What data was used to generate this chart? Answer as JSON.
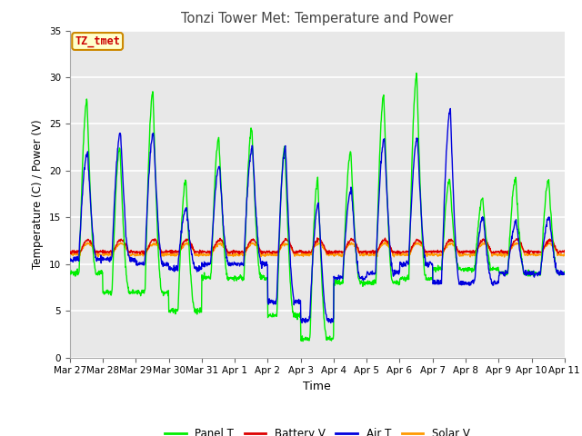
{
  "title": "Tonzi Tower Met: Temperature and Power",
  "xlabel": "Time",
  "ylabel": "Temperature (C) / Power (V)",
  "ylim": [
    0,
    35
  ],
  "yticks": [
    0,
    5,
    10,
    15,
    20,
    25,
    30,
    35
  ],
  "xtick_labels": [
    "Mar 27",
    "Mar 28",
    "Mar 29",
    "Mar 30",
    "Mar 31",
    "Apr 1",
    "Apr 2",
    "Apr 3",
    "Apr 4",
    "Apr 5",
    "Apr 6",
    "Apr 7",
    "Apr 8",
    "Apr 9",
    "Apr 10",
    "Apr 11"
  ],
  "annotation_text": "TZ_tmet",
  "annotation_bg": "#ffffcc",
  "annotation_border": "#cc8800",
  "annotation_text_color": "#cc0000",
  "colors": {
    "panel_t": "#00ee00",
    "battery_v": "#dd0000",
    "air_t": "#0000dd",
    "solar_v": "#ff9900"
  },
  "legend_labels": [
    "Panel T",
    "Battery V",
    "Air T",
    "Solar V"
  ],
  "bg_color": "#e8e8e8",
  "grid_color": "#ffffff",
  "fig_bg": "#ffffff"
}
